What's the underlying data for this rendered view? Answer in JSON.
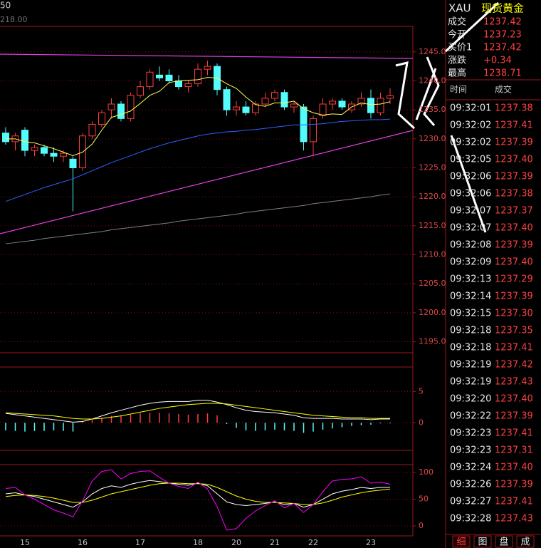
{
  "top_labels": [
    "50",
    "218.00"
  ],
  "chart_data": [
    {
      "type": "candlestick",
      "categories": [
        null,
        null,
        "15",
        null,
        null,
        null,
        null,
        null,
        "16",
        null,
        null,
        null,
        null,
        null,
        "17",
        null,
        null,
        null,
        null,
        null,
        "18",
        null,
        null,
        null,
        "20",
        null,
        null,
        null,
        "21",
        null,
        null,
        null,
        "22",
        null,
        null,
        null,
        null,
        null,
        "23",
        null,
        null
      ],
      "open": [
        1231,
        1229.5,
        1231.5,
        1228,
        1228.5,
        1227.5,
        1227,
        1226.5,
        1225,
        1230.5,
        1232.5,
        1235,
        1236,
        1233.5,
        1237.5,
        1239,
        1241,
        1241,
        1240,
        1239,
        1239.5,
        1242,
        1242.5,
        1238.5,
        1235,
        1235.5,
        1234.5,
        1236,
        1237,
        1238,
        1235.5,
        1235.5,
        1229.5,
        1234,
        1236,
        1236.5,
        1235,
        1236,
        1237,
        1234.5,
        1237
      ],
      "high": [
        1232,
        1231,
        1232,
        1229,
        1229,
        1228.5,
        1228,
        1227,
        1231,
        1233,
        1235,
        1237,
        1236.5,
        1238,
        1240,
        1242,
        1242.5,
        1242,
        1241,
        1240,
        1243,
        1243.5,
        1243,
        1239,
        1236.5,
        1236.5,
        1236.5,
        1238,
        1238.5,
        1238.5,
        1236.5,
        1236,
        1234,
        1237,
        1237,
        1237,
        1236.5,
        1238,
        1238.5,
        1238,
        1238.71
      ],
      "low": [
        1229,
        1228,
        1227,
        1227,
        1227,
        1226,
        1226,
        1217.5,
        1224.5,
        1230,
        1232,
        1233.5,
        1233,
        1233,
        1237,
        1238.5,
        1240,
        1239.5,
        1238.5,
        1238,
        1239,
        1241,
        1237.5,
        1234,
        1234,
        1234,
        1234,
        1235.5,
        1236.5,
        1235,
        1234.5,
        1228,
        1227,
        1233.5,
        1235,
        1235,
        1234.5,
        1235.5,
        1233.5,
        1234,
        1236
      ],
      "close": [
        1229.5,
        1230.5,
        1228,
        1228.5,
        1227.5,
        1227,
        1227.5,
        1225,
        1230.5,
        1232.5,
        1234.5,
        1236,
        1233.5,
        1237.5,
        1239,
        1241.5,
        1240.5,
        1240,
        1239,
        1239.5,
        1242,
        1242.5,
        1238.5,
        1235,
        1235.5,
        1234.5,
        1236,
        1237,
        1238,
        1235.5,
        1236,
        1229.5,
        1233.5,
        1236,
        1236.5,
        1235.5,
        1236,
        1237,
        1234.5,
        1237,
        1237.42
      ],
      "up_color": "#ff3c3c",
      "down_color": "#54fcfc",
      "series": [
        {
          "color": "#ffff54",
          "values": [
            1230,
            1230,
            1229.5,
            1229.3,
            1228.8,
            1228.3,
            1227.7,
            1227.1,
            1227.7,
            1229.1,
            1231.5,
            1233.7,
            1234.2,
            1234.8,
            1236.1,
            1237.5,
            1238.2,
            1239.7,
            1240,
            1240.1,
            1240.2,
            1240.6,
            1240.5,
            1239.5,
            1238.7,
            1237.2,
            1235.9,
            1235.6,
            1236.2,
            1236.2,
            1236.5,
            1235.2,
            1234.5,
            1234.1,
            1234.3,
            1234.2,
            1235.5,
            1236.2,
            1235.9,
            1236,
            1236.4
          ]
        },
        {
          "color": "#3060ff",
          "values": [
            1219.2,
            1219.8,
            1220.4,
            1221,
            1221.6,
            1222.1,
            1222.6,
            1223.1,
            1223.8,
            1224.5,
            1225.2,
            1225.9,
            1226.5,
            1227.1,
            1227.7,
            1228.3,
            1228.8,
            1229.3,
            1229.7,
            1230.1,
            1230.5,
            1230.8,
            1231,
            1231.2,
            1231.3,
            1231.5,
            1231.6,
            1231.8,
            1232,
            1232.2,
            1232.4,
            1232.4,
            1232.5,
            1232.6,
            1232.8,
            1233,
            1233.1,
            1233.2,
            1233.3,
            1233.3,
            1233.4
          ]
        },
        {
          "color": "#808080",
          "values": [
            1211.9,
            1212.1,
            1212.3,
            1212.5,
            1212.8,
            1213,
            1213.2,
            1213.4,
            1213.6,
            1213.8,
            1214,
            1214.3,
            1214.5,
            1214.7,
            1214.9,
            1215.1,
            1215.3,
            1215.5,
            1215.8,
            1216,
            1216.2,
            1216.4,
            1216.6,
            1216.8,
            1217,
            1217.3,
            1217.5,
            1217.7,
            1217.9,
            1218.1,
            1218.3,
            1218.5,
            1218.8,
            1219,
            1219.2,
            1219.4,
            1219.6,
            1219.8,
            1220,
            1220.3,
            1220.5
          ]
        }
      ],
      "ylim": [
        1193.1,
        1249.4
      ],
      "yticks": [
        {
          "value": 1195,
          "label": "1195.0"
        },
        {
          "value": 1200,
          "label": "1200.0"
        },
        {
          "value": 1205,
          "label": "1205.0"
        },
        {
          "value": 1210,
          "label": "1210.0"
        },
        {
          "value": 1215,
          "label": "1215.0"
        },
        {
          "value": 1220,
          "label": "1220.0"
        },
        {
          "value": 1225,
          "label": "1225.0"
        },
        {
          "value": 1230,
          "label": "1230.0"
        },
        {
          "value": 1235,
          "label": "1235.0"
        },
        {
          "value": 1240,
          "label": "1240.0"
        },
        {
          "value": 1245,
          "label": "1245.0"
        }
      ],
      "grid": true
    },
    {
      "type": "macd",
      "histogram": [
        -1.2,
        -1.3,
        -1.4,
        -1.3,
        -1.3,
        -1.2,
        -1.3,
        -1.4,
        0.2,
        0.5,
        0.8,
        1.1,
        1.2,
        1.3,
        1.5,
        1.6,
        1.6,
        1.5,
        1.4,
        1.3,
        1.4,
        1.5,
        1.2,
        -0.2,
        -0.8,
        -1.2,
        -1.3,
        -1.2,
        -1.1,
        -1.2,
        -1.3,
        -1.6,
        -1.4,
        -1.1,
        -0.9,
        -0.7,
        -0.5,
        -0.4,
        -0.3,
        -0.1,
        -0.1
      ],
      "up_color": "#ff3c3c",
      "down_color": "#54fcfc",
      "series": [
        {
          "color": "#ffffff",
          "values": [
            1.5,
            1.3,
            1.1,
            0.9,
            0.7,
            0.5,
            0.3,
            0.1,
            0.2,
            0.6,
            1.1,
            1.6,
            2.0,
            2.4,
            2.8,
            3.1,
            3.3,
            3.4,
            3.4,
            3.4,
            3.6,
            3.6,
            3.3,
            2.9,
            2.4,
            2.0,
            1.8,
            1.7,
            1.6,
            1.4,
            1.2,
            0.8,
            0.7,
            0.7,
            0.7,
            0.6,
            0.6,
            0.6,
            0.5,
            0.6,
            0.6
          ]
        },
        {
          "color": "#ffff00",
          "values": [
            1.6,
            1.5,
            1.4,
            1.3,
            1.2,
            1.1,
            0.9,
            0.7,
            0.6,
            0.6,
            0.7,
            0.9,
            1.1,
            1.4,
            1.7,
            2.0,
            2.3,
            2.5,
            2.7,
            2.9,
            3.0,
            3.1,
            3.1,
            3.0,
            2.8,
            2.6,
            2.4,
            2.2,
            2.0,
            1.8,
            1.6,
            1.4,
            1.2,
            1.1,
            1.0,
            0.9,
            0.8,
            0.8,
            0.7,
            0.7,
            0.7
          ]
        }
      ],
      "ylim": [
        -4.4,
        8.9
      ],
      "yticks": [
        0,
        5
      ],
      "grid": true
    },
    {
      "type": "line",
      "series": [
        {
          "color": "#ffffff",
          "values": [
            60,
            62,
            58,
            55,
            50,
            45,
            40,
            35,
            45,
            60,
            70,
            75,
            72,
            78,
            82,
            85,
            83,
            80,
            78,
            76,
            80,
            75,
            60,
            45,
            40,
            38,
            40,
            42,
            45,
            40,
            42,
            35,
            40,
            50,
            60,
            65,
            68,
            72,
            70,
            72,
            72
          ]
        },
        {
          "color": "#ffff00",
          "values": [
            55,
            57,
            58,
            57,
            55,
            52,
            48,
            44,
            44,
            48,
            54,
            60,
            64,
            68,
            72,
            76,
            79,
            80,
            80,
            79,
            79,
            78,
            72,
            64,
            56,
            50,
            46,
            44,
            44,
            43,
            42,
            40,
            40,
            43,
            48,
            54,
            58,
            62,
            65,
            67,
            69
          ]
        },
        {
          "color": "#ff00ff",
          "values": [
            70,
            72,
            58,
            50,
            40,
            30,
            24,
            17,
            47,
            84,
            102,
            105,
            88,
            98,
            102,
            103,
            91,
            80,
            74,
            70,
            82,
            69,
            36,
            -8,
            -5,
            14,
            28,
            38,
            47,
            34,
            42,
            25,
            40,
            64,
            84,
            87,
            88,
            92,
            80,
            82,
            78
          ]
        }
      ],
      "ylim": [
        -18.7,
        114.7
      ],
      "yticks": [
        0,
        50,
        100
      ],
      "grid": true
    }
  ],
  "quote_panel": {
    "symbol": "XAU",
    "name": "现货黄金",
    "rows": [
      [
        "成交",
        "1237.42"
      ],
      [
        "今开",
        "1237.23"
      ],
      [
        "买价1",
        "1237.42"
      ],
      [
        "涨跌",
        "+0.34"
      ],
      [
        "最高",
        "1238.71"
      ]
    ]
  },
  "trade_list": {
    "headers": [
      "时间",
      "成交"
    ],
    "rows": [
      [
        "09:32:01",
        "1237.38"
      ],
      [
        "09:32:02",
        "1237.41"
      ],
      [
        "09:32:02",
        "1237.39"
      ],
      [
        "09:32:05",
        "1237.40"
      ],
      [
        "09:32:06",
        "1237.39"
      ],
      [
        "09:32:06",
        "1237.38"
      ],
      [
        "09:32:07",
        "1237.37"
      ],
      [
        "09:32:07",
        "1237.40"
      ],
      [
        "09:32:08",
        "1237.39"
      ],
      [
        "09:32:09",
        "1237.40"
      ],
      [
        "09:32:13",
        "1237.29"
      ],
      [
        "09:32:14",
        "1237.39"
      ],
      [
        "09:32:15",
        "1237.30"
      ],
      [
        "09:32:18",
        "1237.35"
      ],
      [
        "09:32:18",
        "1237.41"
      ],
      [
        "09:32:19",
        "1237.42"
      ],
      [
        "09:32:19",
        "1237.43"
      ],
      [
        "09:32:20",
        "1237.40"
      ],
      [
        "09:32:22",
        "1237.39"
      ],
      [
        "09:32:23",
        "1237.41"
      ],
      [
        "09:32:23",
        "1237.31"
      ],
      [
        "09:32:24",
        "1237.40"
      ],
      [
        "09:32:26",
        "1237.39"
      ],
      [
        "09:32:27",
        "1237.41"
      ],
      [
        "09:32:28",
        "1237.43"
      ]
    ]
  },
  "tabs": [
    "细",
    "图",
    "盘",
    "成"
  ]
}
